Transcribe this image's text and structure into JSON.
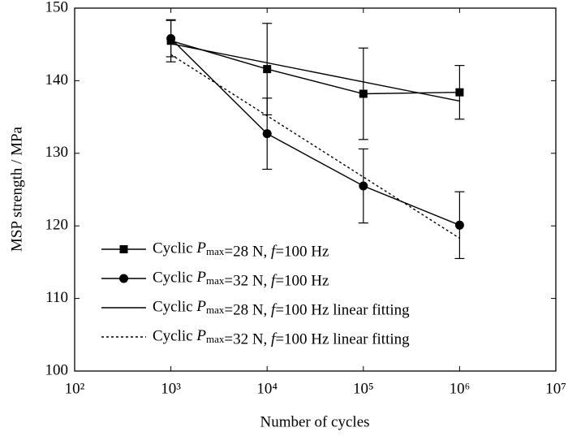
{
  "chart_data": {
    "type": "line",
    "xlabel": "Number of cycles",
    "ylabel": "MSP strength / MPa",
    "xscale": "log",
    "xlim": [
      100,
      10000000
    ],
    "xticks": [
      {
        "value": 100,
        "label": "10²"
      },
      {
        "value": 1000,
        "label": "10³"
      },
      {
        "value": 10000,
        "label": "10⁴"
      },
      {
        "value": 100000,
        "label": "10⁵"
      },
      {
        "value": 1000000,
        "label": "10⁶"
      },
      {
        "value": 10000000,
        "label": "10⁷"
      }
    ],
    "ylim": [
      100,
      150
    ],
    "yticks": [
      100,
      110,
      120,
      130,
      140,
      150
    ],
    "legend": "lower left",
    "series": [
      {
        "name": "Cyclic Pmax=28 N, f=100 Hz",
        "color": "#000000",
        "marker": "square",
        "style": "solid",
        "x": [
          1000,
          10000,
          100000,
          1000000
        ],
        "values": [
          145.5,
          141.6,
          138.2,
          138.4
        ],
        "errors": [
          2.9,
          6.3,
          6.3,
          3.7
        ]
      },
      {
        "name": "Cyclic Pmax=32 N, f=100 Hz",
        "color": "#000000",
        "marker": "circle",
        "style": "solid",
        "x": [
          1000,
          10000,
          100000,
          1000000
        ],
        "values": [
          145.8,
          132.7,
          125.5,
          120.1
        ],
        "errors": [
          2.5,
          4.9,
          5.1,
          4.6
        ]
      },
      {
        "name": "Cyclic Pmax=28 N, f=100 Hz linear fitting",
        "color": "#000000",
        "marker": "none",
        "style": "solid",
        "x": [
          1000,
          1000000
        ],
        "values": [
          145.1,
          137.2
        ]
      },
      {
        "name": "Cyclic Pmax=32 N, f=100 Hz linear fitting",
        "color": "#000000",
        "marker": "none",
        "style": "dotted",
        "x": [
          1000,
          1000000
        ],
        "values": [
          143.6,
          118.3
        ]
      }
    ]
  }
}
